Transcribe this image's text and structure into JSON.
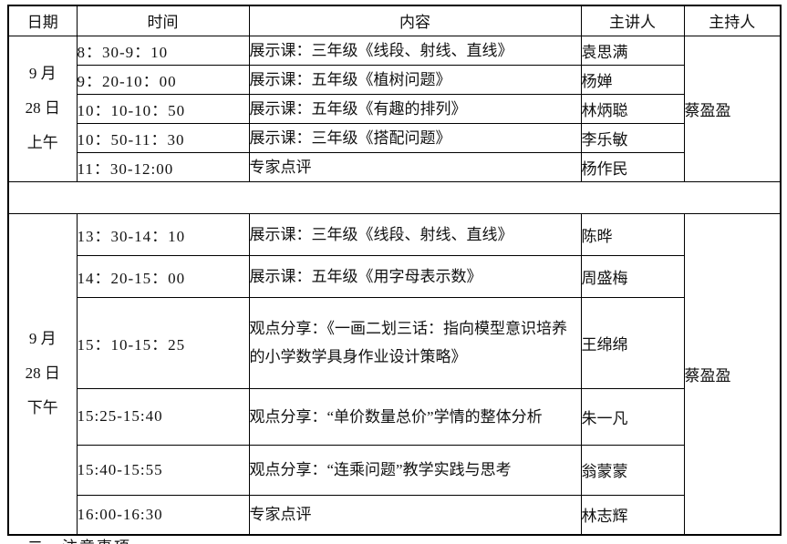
{
  "table": {
    "headers": {
      "date": "日期",
      "time": "时间",
      "content": "内容",
      "speaker": "主讲人",
      "host": "主持人"
    },
    "morning": {
      "date_lines": [
        "9 月",
        "28 日",
        "上午"
      ],
      "host": "蔡盈盈",
      "rows": [
        {
          "time": "8：30-9：10",
          "content": "展示课：三年级《线段、射线、直线》",
          "speaker": "袁思满"
        },
        {
          "time": "9：20-10：00",
          "content": "展示课：五年级《植树问题》",
          "speaker": "杨婵"
        },
        {
          "time": "10：10-10：50",
          "content": "展示课：五年级《有趣的排列》",
          "speaker": "林炳聪"
        },
        {
          "time": "10：50-11：30",
          "content": "展示课：三年级《搭配问题》",
          "speaker": "李乐敏"
        },
        {
          "time": "11：30-12:00",
          "content": "专家点评",
          "speaker": "杨作民"
        }
      ]
    },
    "afternoon": {
      "date_lines": [
        "9 月",
        "28 日",
        "下午"
      ],
      "host": "蔡盈盈",
      "rows": [
        {
          "time": "13：30-14：10",
          "content": "展示课：三年级《线段、射线、直线》",
          "speaker": "陈晔"
        },
        {
          "time": "14：20-15：00",
          "content": "展示课：五年级《用字母表示数》",
          "speaker": "周盛梅"
        },
        {
          "time": "15：10-15：25",
          "content": "观点分享：《一画二划三话：指向模型意识培养的小学数学具身作业设计策略》",
          "speaker": "王绵绵"
        },
        {
          "time": "15:25-15:40",
          "content": "观点分享：“单价数量总价”学情的整体分析",
          "speaker": "朱一凡"
        },
        {
          "time": "15:40-15:55",
          "content": "观点分享：“连乘问题”教学实践与思考",
          "speaker": "翁蒙蒙"
        },
        {
          "time": "16:00-16:30",
          "content": "专家点评",
          "speaker": "林志辉"
        }
      ]
    }
  },
  "footer": {
    "partial_text": "二、注意事项"
  }
}
